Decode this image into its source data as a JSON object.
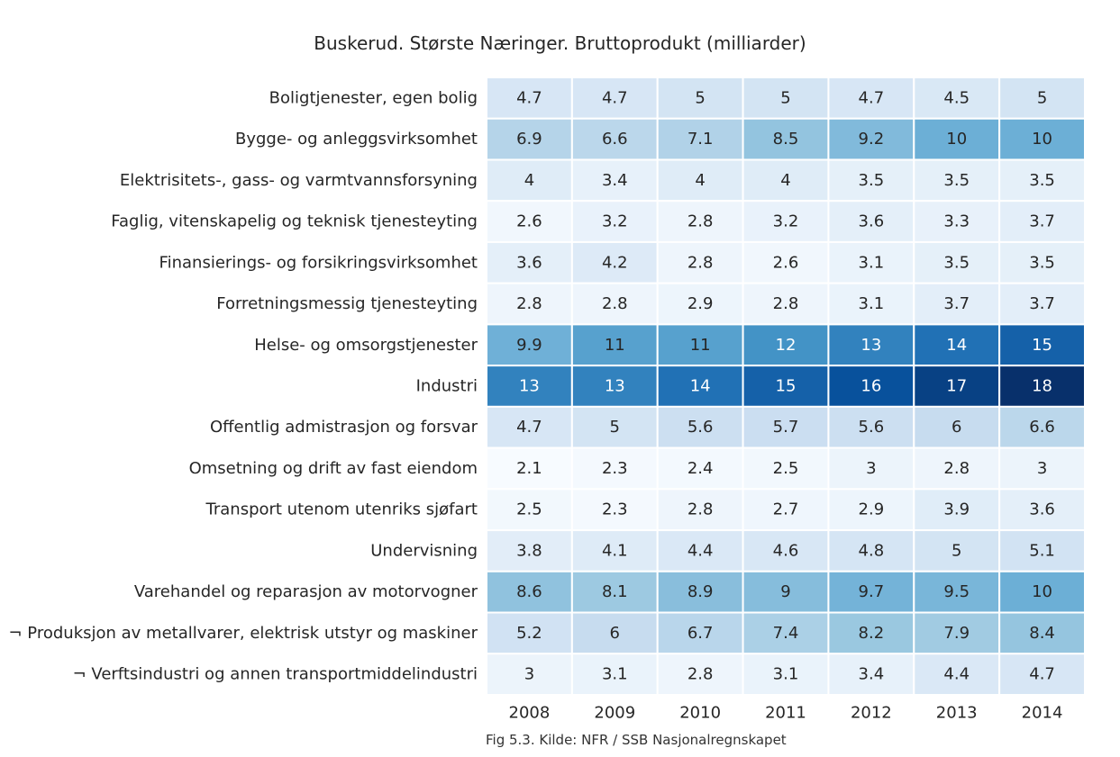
{
  "chart_data": {
    "type": "heatmap",
    "title": "Buskerud. Største Næringer. Bruttoprodukt (milliarder)",
    "caption": "Fig 5.3. Kilde: NFR / SSB Nasjonalregnskapet",
    "colormap": "Blues",
    "color_range": [
      2.1,
      18
    ],
    "colors": {
      "low": "#f7fbff",
      "high": "#08306b",
      "text_dark": "#262626",
      "text_light": "#ffffff",
      "grid": "#ffffff"
    },
    "x": [
      "2008",
      "2009",
      "2010",
      "2011",
      "2012",
      "2013",
      "2014"
    ],
    "rows": [
      {
        "label": "Boligtjenester, egen bolig",
        "values": [
          4.7,
          4.7,
          5,
          5,
          4.7,
          4.5,
          5
        ],
        "labels": [
          "4.7",
          "4.7",
          "5",
          "5",
          "4.7",
          "4.5",
          "5"
        ]
      },
      {
        "label": "Bygge- og anleggsvirksomhet",
        "values": [
          6.9,
          6.6,
          7.1,
          8.5,
          9.2,
          10,
          10
        ],
        "labels": [
          "6.9",
          "6.6",
          "7.1",
          "8.5",
          "9.2",
          "10",
          "10"
        ]
      },
      {
        "label": "Elektrisitets-, gass- og varmtvannsforsyning",
        "values": [
          4,
          3.4,
          4,
          4,
          3.5,
          3.5,
          3.5
        ],
        "labels": [
          "4",
          "3.4",
          "4",
          "4",
          "3.5",
          "3.5",
          "3.5"
        ]
      },
      {
        "label": "Faglig, vitenskapelig og teknisk tjenesteyting",
        "values": [
          2.6,
          3.2,
          2.8,
          3.2,
          3.6,
          3.3,
          3.7
        ],
        "labels": [
          "2.6",
          "3.2",
          "2.8",
          "3.2",
          "3.6",
          "3.3",
          "3.7"
        ]
      },
      {
        "label": "Finansierings- og forsikringsvirksomhet",
        "values": [
          3.6,
          4.2,
          2.8,
          2.6,
          3.1,
          3.5,
          3.5
        ],
        "labels": [
          "3.6",
          "4.2",
          "2.8",
          "2.6",
          "3.1",
          "3.5",
          "3.5"
        ]
      },
      {
        "label": "Forretningsmessig tjenesteyting",
        "values": [
          2.8,
          2.8,
          2.9,
          2.8,
          3.1,
          3.7,
          3.7
        ],
        "labels": [
          "2.8",
          "2.8",
          "2.9",
          "2.8",
          "3.1",
          "3.7",
          "3.7"
        ]
      },
      {
        "label": "Helse- og omsorgstjenester",
        "values": [
          9.9,
          11,
          11,
          12,
          13,
          14,
          15
        ],
        "labels": [
          "9.9",
          "11",
          "11",
          "12",
          "13",
          "14",
          "15"
        ]
      },
      {
        "label": "Industri",
        "values": [
          13,
          13,
          14,
          15,
          16,
          17,
          18
        ],
        "labels": [
          "13",
          "13",
          "14",
          "15",
          "16",
          "17",
          "18"
        ]
      },
      {
        "label": "Offentlig admistrasjon og forsvar",
        "values": [
          4.7,
          5,
          5.6,
          5.7,
          5.6,
          6,
          6.6
        ],
        "labels": [
          "4.7",
          "5",
          "5.6",
          "5.7",
          "5.6",
          "6",
          "6.6"
        ]
      },
      {
        "label": "Omsetning og drift av fast eiendom",
        "values": [
          2.1,
          2.3,
          2.4,
          2.5,
          3,
          2.8,
          3
        ],
        "labels": [
          "2.1",
          "2.3",
          "2.4",
          "2.5",
          "3",
          "2.8",
          "3"
        ]
      },
      {
        "label": "Transport utenom utenriks sjøfart",
        "values": [
          2.5,
          2.3,
          2.8,
          2.7,
          2.9,
          3.9,
          3.6
        ],
        "labels": [
          "2.5",
          "2.3",
          "2.8",
          "2.7",
          "2.9",
          "3.9",
          "3.6"
        ]
      },
      {
        "label": "Undervisning",
        "values": [
          3.8,
          4.1,
          4.4,
          4.6,
          4.8,
          5,
          5.1
        ],
        "labels": [
          "3.8",
          "4.1",
          "4.4",
          "4.6",
          "4.8",
          "5",
          "5.1"
        ]
      },
      {
        "label": "Varehandel og reparasjon av motorvogner",
        "values": [
          8.6,
          8.1,
          8.9,
          9,
          9.7,
          9.5,
          10
        ],
        "labels": [
          "8.6",
          "8.1",
          "8.9",
          "9",
          "9.7",
          "9.5",
          "10"
        ]
      },
      {
        "label": "¬ Produksjon av metallvarer, elektrisk utstyr og maskiner",
        "values": [
          5.2,
          6,
          6.7,
          7.4,
          8.2,
          7.9,
          8.4
        ],
        "labels": [
          "5.2",
          "6",
          "6.7",
          "7.4",
          "8.2",
          "7.9",
          "8.4"
        ]
      },
      {
        "label": "¬ Verftsindustri og annen transportmiddelindustri",
        "values": [
          3,
          3.1,
          2.8,
          3.1,
          3.4,
          4.4,
          4.7
        ],
        "labels": [
          "3",
          "3.1",
          "2.8",
          "3.1",
          "3.4",
          "4.4",
          "4.7"
        ]
      }
    ]
  }
}
